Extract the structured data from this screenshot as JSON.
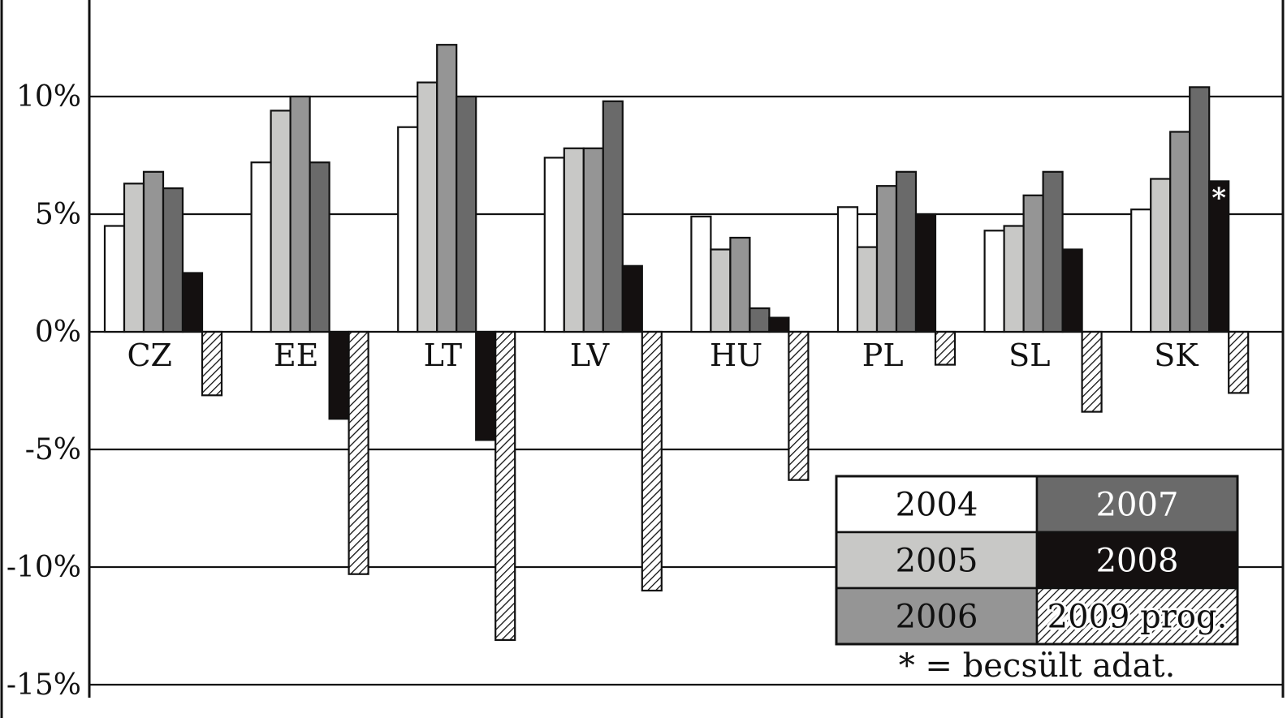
{
  "chart_data": {
    "type": "bar",
    "title": "",
    "xlabel": "",
    "ylabel": "",
    "ylim": [
      -15,
      15
    ],
    "yticks": [
      {
        "value": 10,
        "label": "10%"
      },
      {
        "value": 5,
        "label": "5%"
      },
      {
        "value": 0,
        "label": "0%"
      },
      {
        "value": -5,
        "label": "-5%"
      },
      {
        "value": -10,
        "label": "-10%"
      },
      {
        "value": -15,
        "label": "-15%"
      }
    ],
    "grid": true,
    "categories": [
      "CZ",
      "EE",
      "LT",
      "LV",
      "HU",
      "PL",
      "SL",
      "SK"
    ],
    "series": [
      {
        "name": "2004",
        "fill": "#ffffff",
        "values": [
          4.5,
          7.2,
          8.7,
          7.4,
          4.9,
          5.3,
          4.3,
          5.2
        ]
      },
      {
        "name": "2005",
        "fill": "#c8c8c6",
        "values": [
          6.3,
          9.4,
          10.6,
          7.8,
          3.5,
          3.6,
          4.5,
          6.5
        ]
      },
      {
        "name": "2006",
        "fill": "#959595",
        "values": [
          6.8,
          10.0,
          12.2,
          7.8,
          4.0,
          6.2,
          5.8,
          8.5
        ]
      },
      {
        "name": "2007",
        "fill": "#6a6a6a",
        "values": [
          6.1,
          7.2,
          10.0,
          9.8,
          1.0,
          6.8,
          6.8,
          10.4
        ]
      },
      {
        "name": "2008",
        "fill": "#141010",
        "values": [
          2.5,
          -3.7,
          -4.6,
          2.8,
          0.6,
          5.0,
          3.5,
          6.4
        ]
      },
      {
        "name": "2009 prog.",
        "fill": "hatch",
        "values": [
          -2.7,
          -10.3,
          -13.1,
          -11.0,
          -6.3,
          -1.4,
          -3.4,
          -2.6
        ]
      }
    ],
    "annotations": [
      {
        "category": "SK",
        "series": "2008",
        "text": "*"
      }
    ],
    "legend": {
      "placement": "bottom-right",
      "columns": 2
    },
    "note": "* = becsült adat."
  },
  "colors": {
    "axis": "#111111",
    "grid": "#111111",
    "background": "#ffffff"
  }
}
